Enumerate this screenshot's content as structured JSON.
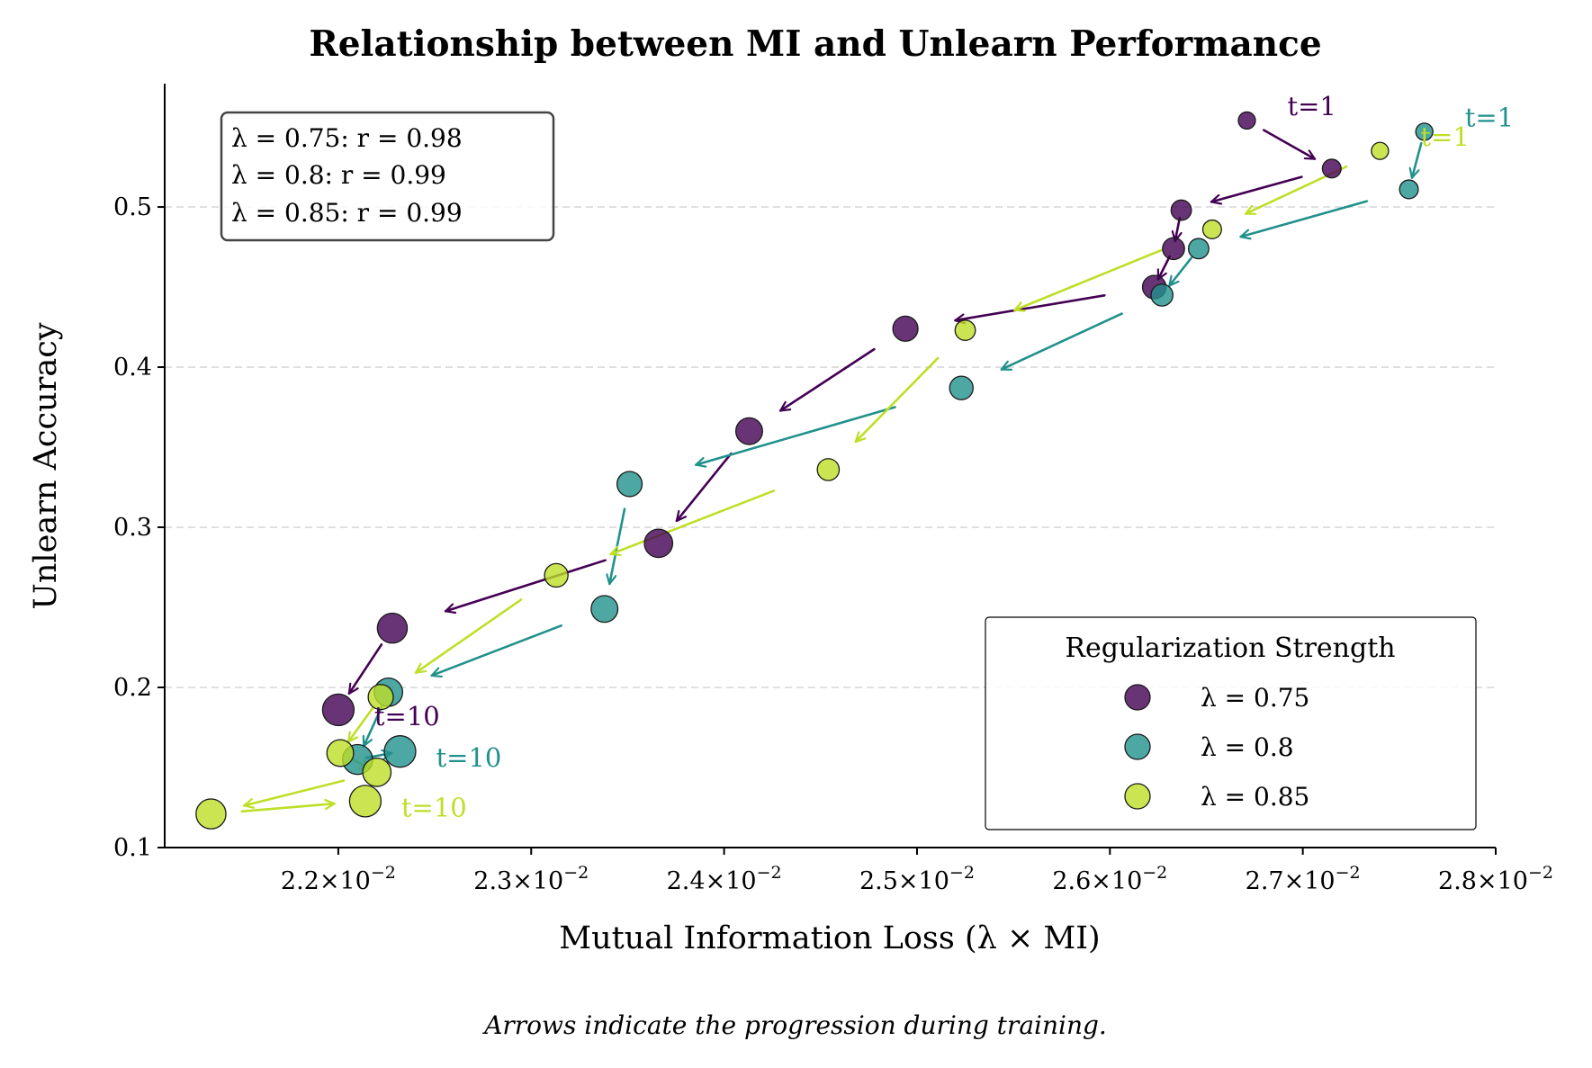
{
  "chart_data": {
    "type": "scatter",
    "title": "Relationship between MI and Unlearn Performance",
    "xlabel": "Mutual Information Loss (λ × MI)",
    "ylabel": "Unlearn Accuracy",
    "xlim": [
      0.0211,
      0.028
    ],
    "ylim": [
      0.1,
      0.577
    ],
    "x_ticks": [
      {
        "value": 0.022,
        "mantissa": "2.2",
        "exponent": "−2"
      },
      {
        "value": 0.023,
        "mantissa": "2.3",
        "exponent": "−2"
      },
      {
        "value": 0.024,
        "mantissa": "2.4",
        "exponent": "−2"
      },
      {
        "value": 0.025,
        "mantissa": "2.5",
        "exponent": "−2"
      },
      {
        "value": 0.026,
        "mantissa": "2.6",
        "exponent": "−2"
      },
      {
        "value": 0.027,
        "mantissa": "2.7",
        "exponent": "−2"
      },
      {
        "value": 0.028,
        "mantissa": "2.8",
        "exponent": "−2"
      }
    ],
    "x_tick_times": "×10",
    "y_ticks": [
      {
        "value": 0.1,
        "label": "0.1"
      },
      {
        "value": 0.2,
        "label": "0.2"
      },
      {
        "value": 0.3,
        "label": "0.3"
      },
      {
        "value": 0.4,
        "label": "0.4"
      },
      {
        "value": 0.5,
        "label": "0.5"
      }
    ],
    "grid": "y-dashed",
    "series": [
      {
        "name": "λ = 0.75",
        "color": "#440154",
        "start_label": "t=1",
        "end_label": "t=10",
        "points": [
          {
            "x": 0.02671,
            "y": 0.554
          },
          {
            "x": 0.02715,
            "y": 0.524
          },
          {
            "x": 0.02637,
            "y": 0.498
          },
          {
            "x": 0.02633,
            "y": 0.474
          },
          {
            "x": 0.02623,
            "y": 0.45
          },
          {
            "x": 0.02494,
            "y": 0.424
          },
          {
            "x": 0.02413,
            "y": 0.36
          },
          {
            "x": 0.02366,
            "y": 0.29
          },
          {
            "x": 0.02228,
            "y": 0.237
          },
          {
            "x": 0.022,
            "y": 0.186
          }
        ]
      },
      {
        "name": "λ = 0.8",
        "color": "#21918c",
        "start_label": "t=1",
        "end_label": "t=10",
        "points": [
          {
            "x": 0.02763,
            "y": 0.547
          },
          {
            "x": 0.02755,
            "y": 0.511
          },
          {
            "x": 0.02646,
            "y": 0.474
          },
          {
            "x": 0.02627,
            "y": 0.445
          },
          {
            "x": 0.02523,
            "y": 0.387
          },
          {
            "x": 0.02351,
            "y": 0.327
          },
          {
            "x": 0.02338,
            "y": 0.249
          },
          {
            "x": 0.02226,
            "y": 0.197
          },
          {
            "x": 0.0221,
            "y": 0.155
          },
          {
            "x": 0.02232,
            "y": 0.16
          }
        ]
      },
      {
        "name": "λ = 0.85",
        "color": "#bddf26",
        "start_label": "t=1",
        "end_label": "t=10",
        "points": [
          {
            "x": 0.0274,
            "y": 0.535
          },
          {
            "x": 0.02653,
            "y": 0.486
          },
          {
            "x": 0.02525,
            "y": 0.423
          },
          {
            "x": 0.02454,
            "y": 0.336
          },
          {
            "x": 0.02313,
            "y": 0.27
          },
          {
            "x": 0.02222,
            "y": 0.194
          },
          {
            "x": 0.02201,
            "y": 0.159
          },
          {
            "x": 0.0222,
            "y": 0.147
          },
          {
            "x": 0.02134,
            "y": 0.121
          },
          {
            "x": 0.02214,
            "y": 0.129
          }
        ]
      }
    ],
    "stats_box": [
      "λ = 0.75: r = 0.98",
      "λ = 0.8: r = 0.99",
      "λ = 0.85: r = 0.99"
    ],
    "legend": {
      "title": "Regularization Strength",
      "placement": "bottom-right"
    },
    "caption": "Arrows indicate the progression during training."
  }
}
